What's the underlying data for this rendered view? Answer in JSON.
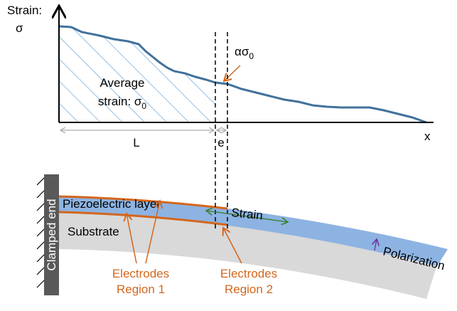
{
  "axis": {
    "y_label": [
      "Strain:",
      "σ"
    ],
    "x_label": "x"
  },
  "annotations": {
    "average": {
      "line1": "Average",
      "line2": "strain: σ",
      "line2_sub": "0"
    },
    "alpha": {
      "text": "ασ",
      "sub": "0"
    },
    "length_L": "L",
    "length_e": "e"
  },
  "beam": {
    "piezo_layer": "Piezoelectric layer",
    "substrate": "Substrate",
    "clamp": "Clamped end",
    "strain": "Strain",
    "polarization": "Polarization"
  },
  "electrodes": [
    {
      "line1": "Electrodes",
      "line2": "Region 1"
    },
    {
      "line1": "Electrodes",
      "line2": "Region 2"
    }
  ]
}
